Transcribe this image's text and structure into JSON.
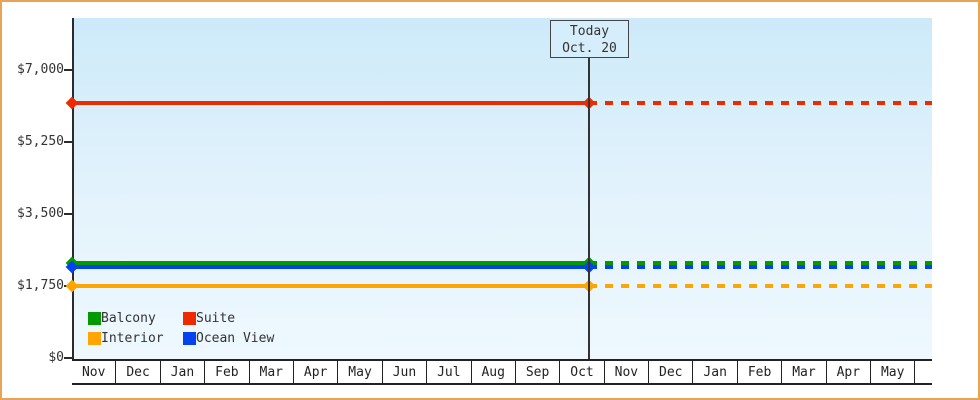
{
  "today_box": {
    "line1": "Today",
    "line2": "Oct. 20"
  },
  "legend": {
    "items": [
      {
        "label": "Balcony",
        "color": "#019a01"
      },
      {
        "label": "Suite",
        "color": "#ee2b00"
      },
      {
        "label": "Interior",
        "color": "#ffa401"
      },
      {
        "label": "Ocean View",
        "color": "#0343ef"
      }
    ]
  },
  "chart_data": {
    "type": "line",
    "title": "",
    "xlabel": "",
    "ylabel": "",
    "x_months": [
      "Nov",
      "Dec",
      "Jan",
      "Feb",
      "Mar",
      "Apr",
      "May",
      "Jun",
      "Jul",
      "Aug",
      "Sep",
      "Oct",
      "Nov",
      "Dec",
      "Jan",
      "Feb",
      "Mar",
      "Apr",
      "May"
    ],
    "yticks": [
      {
        "label": "$0",
        "value": 0
      },
      {
        "label": "$1,750",
        "value": 1750
      },
      {
        "label": "$3,500",
        "value": 3500
      },
      {
        "label": "$5,250",
        "value": 5250
      },
      {
        "label": "$7,000",
        "value": 7000
      }
    ],
    "ylim": [
      0,
      8260
    ],
    "grid": false,
    "legend_position": "bottom-left-inside",
    "today": {
      "label": "Today",
      "date_label": "Oct. 20",
      "month_index": 11,
      "month_fraction": 0.645
    },
    "solid_before_today": true,
    "dashed_after_today": true,
    "series": [
      {
        "name": "Suite",
        "color": "#ee2b00",
        "value": 6200
      },
      {
        "name": "Balcony",
        "color": "#019a01",
        "value": 2300
      },
      {
        "name": "Ocean View",
        "color": "#0343ef",
        "value": 2210
      },
      {
        "name": "Interior",
        "color": "#ffa401",
        "value": 1750
      }
    ],
    "colors": {
      "frame_border": "#e7a356",
      "axis": "#2b2b2b",
      "plot_top": "#cdeafa",
      "plot_bottom": "#eef8fe",
      "text": "#333333"
    }
  }
}
